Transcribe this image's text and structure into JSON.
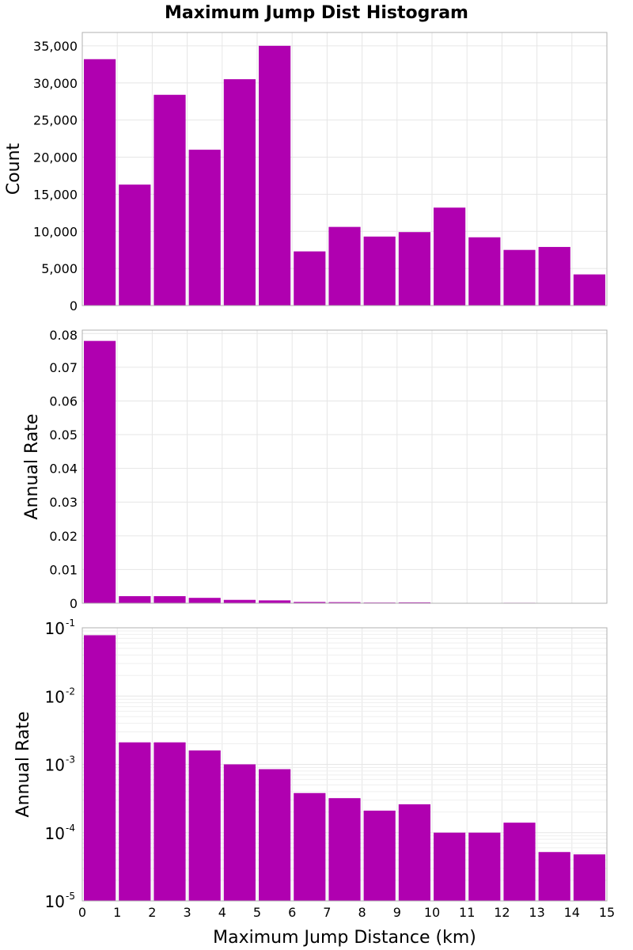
{
  "title": "Maximum Jump Dist Histogram",
  "colors": {
    "bar": "#b000b0",
    "grid": "#e6e6e6",
    "frame": "#b0b0b0"
  },
  "chart_data": [
    {
      "type": "bar",
      "title": "",
      "xlabel": "",
      "ylabel": "Count",
      "x": [
        0.5,
        1.5,
        2.5,
        3.5,
        4.5,
        5.5,
        6.5,
        7.5,
        8.5,
        9.5,
        10.5,
        11.5,
        12.5,
        13.5,
        14.5
      ],
      "values": [
        33200,
        16300,
        28400,
        21000,
        30500,
        35000,
        7300,
        10600,
        9300,
        9900,
        13200,
        9200,
        7500,
        7900,
        4200
      ],
      "xlim": [
        0,
        15
      ],
      "ylim": [
        0,
        36800
      ],
      "yscale": "linear",
      "yticks": [
        0,
        5000,
        10000,
        15000,
        20000,
        25000,
        30000,
        35000
      ],
      "ytick_labels": [
        "0",
        "5,000",
        "10,000",
        "15,000",
        "20,000",
        "25,000",
        "30,000",
        "35,000"
      ],
      "grid": true
    },
    {
      "type": "bar",
      "title": "",
      "xlabel": "",
      "ylabel": "Annual Rate",
      "x": [
        0.5,
        1.5,
        2.5,
        3.5,
        4.5,
        5.5,
        6.5,
        7.5,
        8.5,
        9.5,
        10.5,
        11.5,
        12.5,
        13.5,
        14.5
      ],
      "values": [
        0.0778,
        0.0021,
        0.0021,
        0.0016,
        0.001,
        0.00085,
        0.00038,
        0.00032,
        0.00021,
        0.00026,
        0.0001,
        0.0001,
        0.00014,
        5.2e-05,
        4.8e-05
      ],
      "xlim": [
        0,
        15
      ],
      "ylim": [
        0,
        0.081
      ],
      "yscale": "linear",
      "yticks": [
        0,
        0.01,
        0.02,
        0.03,
        0.04,
        0.05,
        0.06,
        0.07,
        0.08
      ],
      "ytick_labels": [
        "0",
        "0.01",
        "0.02",
        "0.03",
        "0.04",
        "0.05",
        "0.06",
        "0.07",
        "0.08"
      ],
      "grid": true
    },
    {
      "type": "bar",
      "title": "",
      "xlabel": "Maximum Jump Distance (km)",
      "ylabel": "Annual Rate",
      "x": [
        0.5,
        1.5,
        2.5,
        3.5,
        4.5,
        5.5,
        6.5,
        7.5,
        8.5,
        9.5,
        10.5,
        11.5,
        12.5,
        13.5,
        14.5
      ],
      "values": [
        0.0778,
        0.0021,
        0.0021,
        0.0016,
        0.001,
        0.00085,
        0.00038,
        0.00032,
        0.00021,
        0.00026,
        0.0001,
        0.0001,
        0.00014,
        5.2e-05,
        4.8e-05
      ],
      "xlim": [
        0,
        15
      ],
      "ylim": [
        1e-05,
        0.1
      ],
      "yscale": "log",
      "yticks": [
        1e-05,
        0.0001,
        0.001,
        0.01,
        0.1
      ],
      "ytick_labels": [
        {
          "base": "10",
          "exp": "-5"
        },
        {
          "base": "10",
          "exp": "-4"
        },
        {
          "base": "10",
          "exp": "-3"
        },
        {
          "base": "10",
          "exp": "-2"
        },
        {
          "base": "10",
          "exp": "-1"
        }
      ],
      "xticks": [
        0,
        1,
        2,
        3,
        4,
        5,
        6,
        7,
        8,
        9,
        10,
        11,
        12,
        13,
        14,
        15
      ],
      "xtick_labels": [
        "0",
        "1",
        "2",
        "3",
        "4",
        "5",
        "6",
        "7",
        "8",
        "9",
        "10",
        "11",
        "12",
        "13",
        "14",
        "15"
      ],
      "grid": true
    }
  ]
}
